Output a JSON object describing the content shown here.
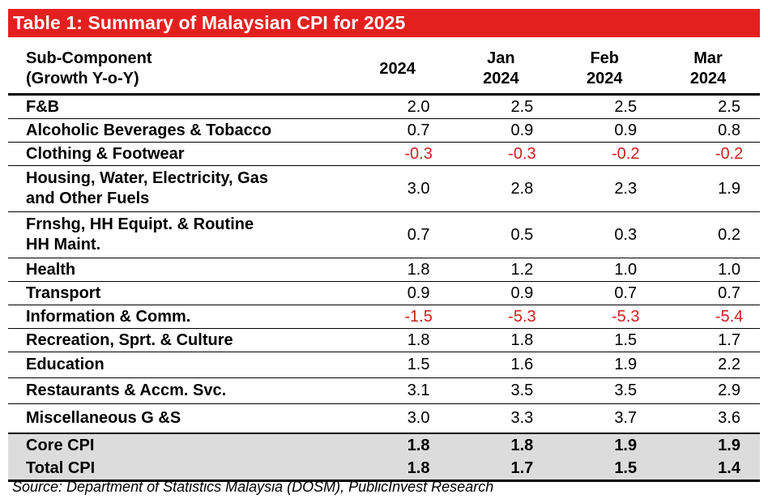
{
  "title": "Table 1:  Summary of Malaysian CPI for 2025",
  "header": {
    "label_line1": "Sub-Component",
    "label_line2": "(Growth Y-o-Y)",
    "columns": [
      {
        "line1": "",
        "line2": "2024"
      },
      {
        "line1": "Jan",
        "line2": "2024"
      },
      {
        "line1": "Feb",
        "line2": "2024"
      },
      {
        "line1": "Mar",
        "line2": "2024"
      }
    ]
  },
  "rows": [
    {
      "label_line1": "F&B",
      "label_line2": "",
      "values": [
        "2.0",
        "2.5",
        "2.5",
        "2.5"
      ]
    },
    {
      "label_line1": "Alcoholic Beverages & Tobacco",
      "label_line2": "",
      "values": [
        "0.7",
        "0.9",
        "0.9",
        "0.8"
      ]
    },
    {
      "label_line1": "Clothing & Footwear",
      "label_line2": "",
      "values": [
        "-0.3",
        "-0.3",
        "-0.2",
        "-0.2"
      ]
    },
    {
      "label_line1": "Housing, Water, Electricity, Gas",
      "label_line2": "and Other Fuels",
      "values": [
        "3.0",
        "2.8",
        "2.3",
        "1.9"
      ]
    },
    {
      "label_line1": "Frnshg, HH Equipt. & Routine",
      "label_line2": "HH Maint.",
      "values": [
        "0.7",
        "0.5",
        "0.3",
        "0.2"
      ]
    },
    {
      "label_line1": "Health",
      "label_line2": "",
      "values": [
        "1.8",
        "1.2",
        "1.0",
        "1.0"
      ]
    },
    {
      "label_line1": "Transport",
      "label_line2": "",
      "values": [
        "0.9",
        "0.9",
        "0.7",
        "0.7"
      ]
    },
    {
      "label_line1": "Information & Comm.",
      "label_line2": "",
      "values": [
        "-1.5",
        "-5.3",
        "-5.3",
        "-5.4"
      ]
    },
    {
      "label_line1": "Recreation, Sprt. & Culture",
      "label_line2": "",
      "values": [
        "1.8",
        "1.8",
        "1.5",
        "1.7"
      ]
    },
    {
      "label_line1": "Education",
      "label_line2": "",
      "values": [
        "1.5",
        "1.6",
        "1.9",
        "2.2"
      ]
    },
    {
      "label_line1": "Restaurants & Accm. Svc.",
      "label_line2": "",
      "values": [
        "3.1",
        "3.5",
        "3.5",
        "2.9"
      ]
    },
    {
      "label_line1": "Miscellaneous G &S",
      "label_line2": "",
      "values": [
        "3.0",
        "3.3",
        "3.7",
        "3.6"
      ]
    }
  ],
  "summary_rows": [
    {
      "label": "Core CPI",
      "values": [
        "1.8",
        "1.8",
        "1.9",
        "1.9"
      ]
    },
    {
      "label": "Total CPI",
      "values": [
        "1.8",
        "1.7",
        "1.5",
        "1.4"
      ]
    }
  ],
  "source": "Source: Department of Statistics Malaysia (DOSM), PublicInvest Research",
  "colors": {
    "title_background": "#e4201f",
    "title_text": "#ffffff",
    "negative_value": "#d01f1f",
    "summary_background": "#dcdcdc"
  }
}
